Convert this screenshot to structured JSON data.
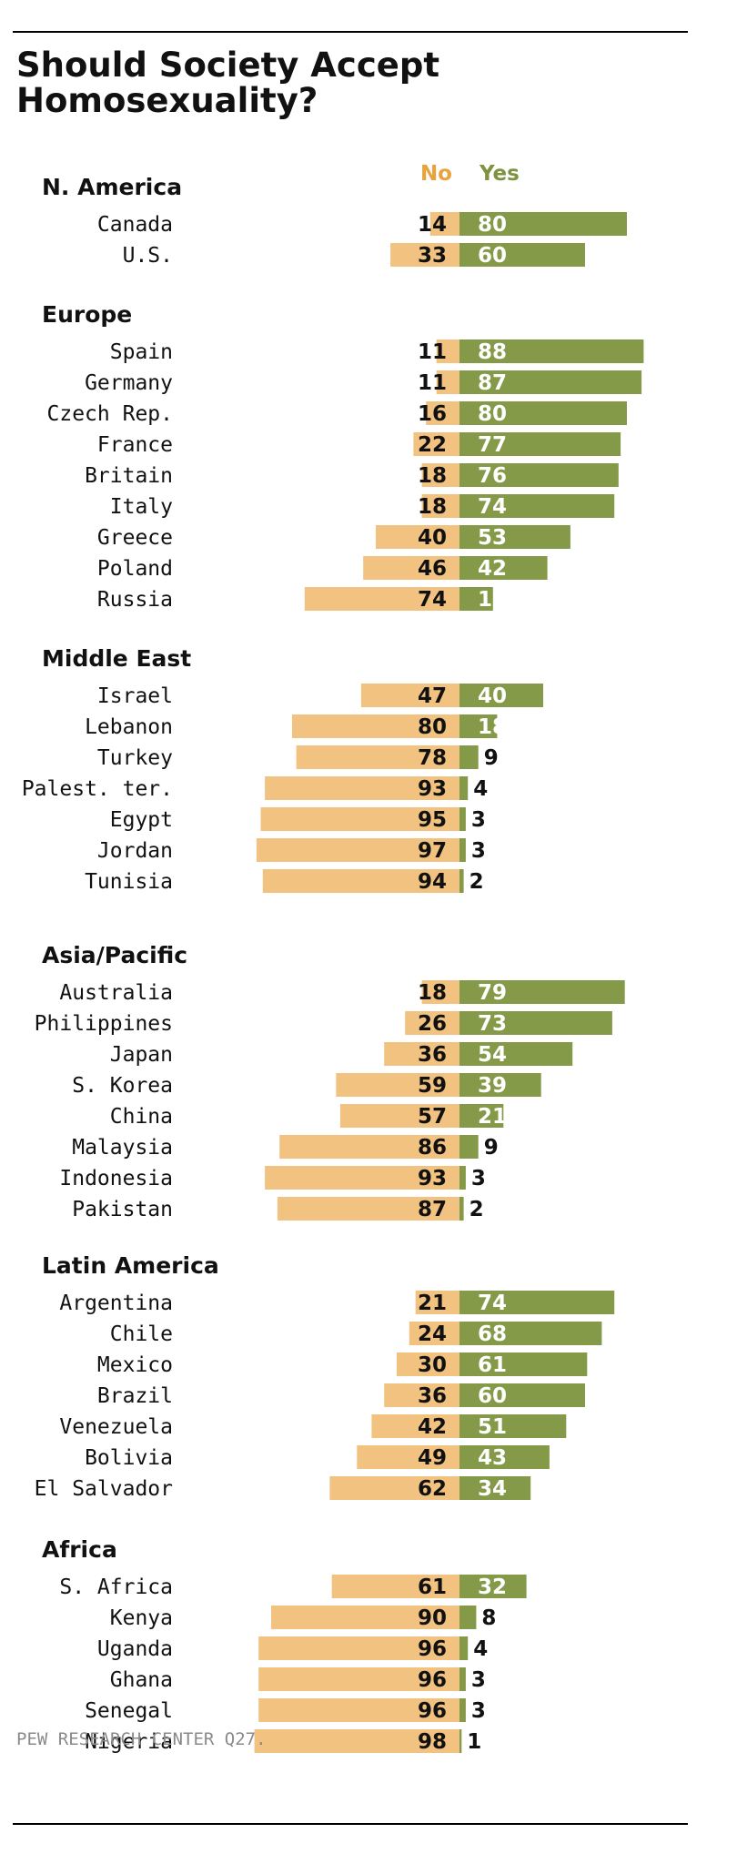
{
  "title": "Should Society Accept Homosexuality?",
  "source": "PEW RESEARCH  CENTER Q27.",
  "colors": {
    "no": "#f2c280",
    "yes": "#859a48",
    "no_header": "#e8a33e",
    "yes_header": "#7e9240",
    "text": "#111111",
    "yes_inside_text": "#ffffff"
  },
  "chart_data": {
    "type": "bar",
    "orientation": "horizontal-diverging",
    "legend": [
      "No",
      "Yes"
    ],
    "series_names": {
      "no": "No",
      "yes": "Yes"
    },
    "groups": [
      {
        "name": "N. America",
        "rows": [
          {
            "country": "Canada",
            "no": 14,
            "yes": 80
          },
          {
            "country": "U.S.",
            "no": 33,
            "yes": 60
          }
        ]
      },
      {
        "name": "Europe",
        "rows": [
          {
            "country": "Spain",
            "no": 11,
            "yes": 88
          },
          {
            "country": "Germany",
            "no": 11,
            "yes": 87
          },
          {
            "country": "Czech Rep.",
            "no": 16,
            "yes": 80
          },
          {
            "country": "France",
            "no": 22,
            "yes": 77
          },
          {
            "country": "Britain",
            "no": 18,
            "yes": 76
          },
          {
            "country": "Italy",
            "no": 18,
            "yes": 74
          },
          {
            "country": "Greece",
            "no": 40,
            "yes": 53
          },
          {
            "country": "Poland",
            "no": 46,
            "yes": 42
          },
          {
            "country": "Russia",
            "no": 74,
            "yes": 16
          }
        ]
      },
      {
        "name": "Middle East",
        "rows": [
          {
            "country": "Israel",
            "no": 47,
            "yes": 40
          },
          {
            "country": "Lebanon",
            "no": 80,
            "yes": 18
          },
          {
            "country": "Turkey",
            "no": 78,
            "yes": 9
          },
          {
            "country": "Palest. ter.",
            "no": 93,
            "yes": 4
          },
          {
            "country": "Egypt",
            "no": 95,
            "yes": 3
          },
          {
            "country": "Jordan",
            "no": 97,
            "yes": 3
          },
          {
            "country": "Tunisia",
            "no": 94,
            "yes": 2
          }
        ]
      },
      {
        "name": "Asia/Pacific",
        "rows": [
          {
            "country": "Australia",
            "no": 18,
            "yes": 79
          },
          {
            "country": "Philippines",
            "no": 26,
            "yes": 73
          },
          {
            "country": "Japan",
            "no": 36,
            "yes": 54
          },
          {
            "country": "S. Korea",
            "no": 59,
            "yes": 39
          },
          {
            "country": "China",
            "no": 57,
            "yes": 21
          },
          {
            "country": "Malaysia",
            "no": 86,
            "yes": 9
          },
          {
            "country": "Indonesia",
            "no": 93,
            "yes": 3
          },
          {
            "country": "Pakistan",
            "no": 87,
            "yes": 2
          }
        ]
      },
      {
        "name": "Latin America",
        "rows": [
          {
            "country": "Argentina",
            "no": 21,
            "yes": 74
          },
          {
            "country": "Chile",
            "no": 24,
            "yes": 68
          },
          {
            "country": "Mexico",
            "no": 30,
            "yes": 61
          },
          {
            "country": "Brazil",
            "no": 36,
            "yes": 60
          },
          {
            "country": "Venezuela",
            "no": 42,
            "yes": 51
          },
          {
            "country": "Bolivia",
            "no": 49,
            "yes": 43
          },
          {
            "country": "El Salvador",
            "no": 62,
            "yes": 34
          }
        ]
      },
      {
        "name": "Africa",
        "rows": [
          {
            "country": "S. Africa",
            "no": 61,
            "yes": 32
          },
          {
            "country": "Kenya",
            "no": 90,
            "yes": 8
          },
          {
            "country": "Uganda",
            "no": 96,
            "yes": 4
          },
          {
            "country": "Ghana",
            "no": 96,
            "yes": 3
          },
          {
            "country": "Senegal",
            "no": 96,
            "yes": 3
          },
          {
            "country": "Nigeria",
            "no": 98,
            "yes": 1
          }
        ]
      }
    ]
  }
}
